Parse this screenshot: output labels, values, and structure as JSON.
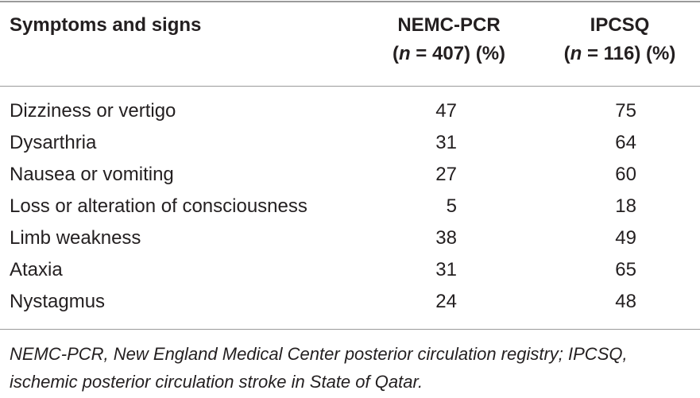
{
  "table": {
    "header": {
      "symptoms": "Symptoms and signs",
      "nemc": {
        "name": "NEMC-PCR",
        "n_symbol": "n",
        "count": " = 407) (%)",
        "open": "("
      },
      "ipcsq": {
        "name": "IPCSQ",
        "n_symbol": "n",
        "count": " = 116) (%)",
        "open": "("
      }
    },
    "rows": [
      {
        "label": "Dizziness or vertigo",
        "nemc": "47",
        "ipcsq": "75"
      },
      {
        "label": "Dysarthria",
        "nemc": "31",
        "ipcsq": "64"
      },
      {
        "label": "Nausea or vomiting",
        "nemc": "27",
        "ipcsq": "60"
      },
      {
        "label": "Loss or alteration of consciousness",
        "nemc": "5",
        "ipcsq": "18"
      },
      {
        "label": "Limb weakness",
        "nemc": "38",
        "ipcsq": "49"
      },
      {
        "label": "Ataxia",
        "nemc": "31",
        "ipcsq": "65"
      },
      {
        "label": "Nystagmus",
        "nemc": "24",
        "ipcsq": "48"
      }
    ],
    "footnote": "NEMC-PCR, New England Medical Center posterior circulation registry; IPCSQ, ischemic posterior circulation stroke in State of Qatar."
  }
}
